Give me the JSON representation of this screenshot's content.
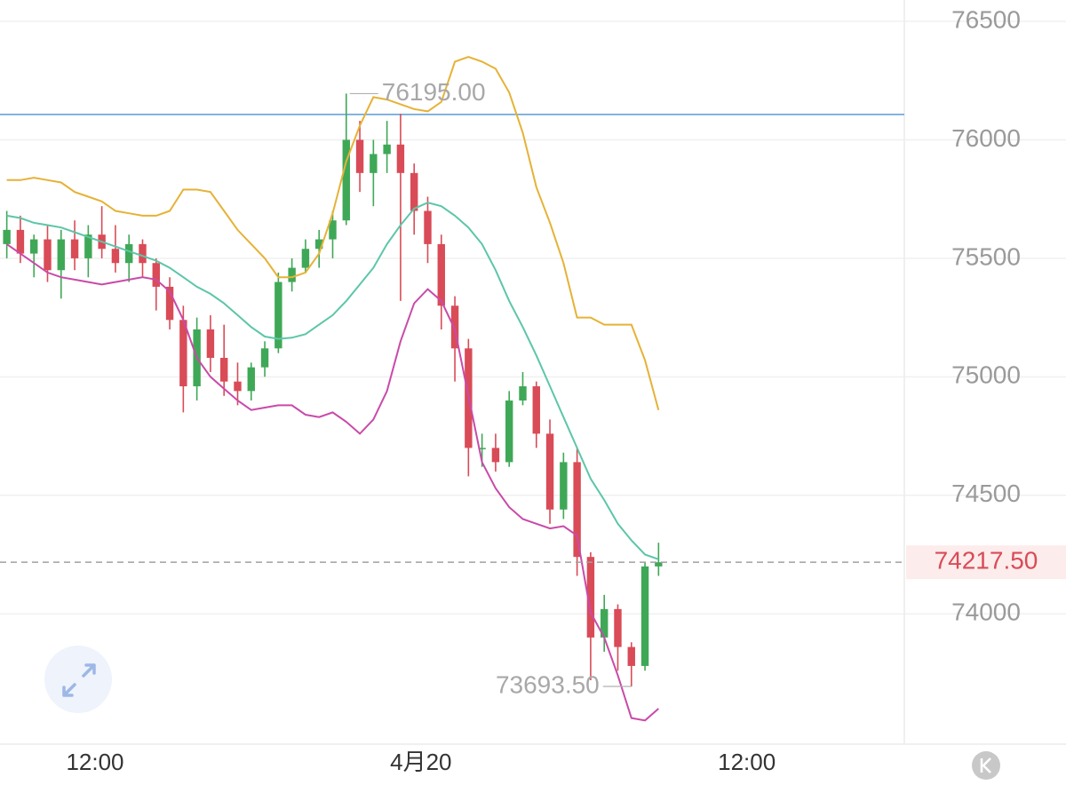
{
  "chart_data": {
    "type": "candlestick",
    "x": [
      -15.25,
      -14.75,
      -14.25,
      -13.75,
      -13.25,
      -12.75,
      -12.25,
      -11.75,
      -11.25,
      -10.75,
      -10.25,
      -9.75,
      -9.25,
      -8.75,
      -8.25,
      -7.75,
      -7.25,
      -6.75,
      -6.25,
      -5.75,
      -5.25,
      -4.75,
      -4.25,
      -3.75,
      -3.25,
      -2.75,
      -2.25,
      -1.75,
      -1.25,
      -0.75,
      -0.25,
      0.25,
      0.75,
      1.25,
      1.75,
      2.25,
      2.75,
      3.25,
      3.75,
      4.25,
      4.75,
      5.25,
      5.75,
      6.25,
      6.75,
      7.25,
      7.75,
      8.25,
      8.75
    ],
    "open": [
      75560,
      75620,
      75520,
      75580,
      75450,
      75580,
      75500,
      75600,
      75540,
      75480,
      75560,
      75480,
      75380,
      75240,
      74960,
      75200,
      75080,
      74980,
      74940,
      75040,
      75120,
      75400,
      75460,
      75540,
      75580,
      75660,
      76000,
      75860,
      75940,
      75980,
      75860,
      75700,
      75560,
      75300,
      75120,
      74700,
      74700,
      74640,
      74900,
      74960,
      74760,
      74440,
      74640,
      74240,
      73900,
      74020,
      73860,
      73780,
      74200
    ],
    "high": [
      75700,
      75680,
      75600,
      75640,
      75620,
      75660,
      75640,
      75720,
      75640,
      75600,
      75580,
      75500,
      75420,
      75300,
      75250,
      75260,
      75220,
      75060,
      75060,
      75150,
      75440,
      75500,
      75580,
      75620,
      75700,
      76195,
      76080,
      76000,
      76080,
      76110,
      75900,
      75760,
      75600,
      75340,
      75160,
      74760,
      74760,
      74940,
      75020,
      74980,
      74820,
      74680,
      74700,
      74260,
      74080,
      74040,
      73880,
      74220,
      74300
    ],
    "low": [
      75500,
      75480,
      75420,
      75400,
      75330,
      75450,
      75420,
      75500,
      75440,
      75400,
      75420,
      75280,
      75200,
      74850,
      74900,
      75020,
      74920,
      74880,
      74900,
      75000,
      75100,
      75360,
      75440,
      75460,
      75500,
      75640,
      75780,
      75720,
      75860,
      75320,
      75600,
      75480,
      75200,
      74980,
      74580,
      74620,
      74600,
      74620,
      74880,
      74700,
      74380,
      74400,
      74160,
      73720,
      73840,
      73760,
      73693.5,
      73760,
      74160
    ],
    "close": [
      75620,
      75520,
      75580,
      75450,
      75580,
      75500,
      75600,
      75540,
      75480,
      75560,
      75480,
      75380,
      75240,
      74960,
      75200,
      75080,
      74980,
      74940,
      75040,
      75120,
      75400,
      75460,
      75540,
      75580,
      75660,
      76000,
      75860,
      75940,
      75980,
      75860,
      75700,
      75560,
      75300,
      75120,
      74700,
      74700,
      74640,
      74900,
      74960,
      74760,
      74440,
      74640,
      74240,
      73900,
      74020,
      73860,
      73780,
      74200,
      74217.5
    ],
    "up_color": "#3fa857",
    "down_color": "#d94b57",
    "bands": [
      {
        "color": "#e6b236",
        "values": [
          75830,
          75830,
          75840,
          75830,
          75820,
          75780,
          75760,
          75740,
          75700,
          75690,
          75680,
          75680,
          75700,
          75790,
          75790,
          75780,
          75700,
          75620,
          75560,
          75500,
          75420,
          75420,
          75440,
          75520,
          75690,
          75910,
          76060,
          76180,
          76170,
          76150,
          76130,
          76120,
          76160,
          76330,
          76350,
          76330,
          76300,
          76200,
          76030,
          75800,
          75650,
          75480,
          75250,
          75250,
          75220,
          75220,
          75220,
          75070,
          74860
        ]
      },
      {
        "color": "#5cc6a8",
        "values": [
          75680,
          75670,
          75650,
          75640,
          75630,
          75610,
          75590,
          75570,
          75550,
          75530,
          75510,
          75490,
          75460,
          75420,
          75380,
          75350,
          75310,
          75260,
          75210,
          75170,
          75160,
          75165,
          75180,
          75220,
          75260,
          75320,
          75390,
          75460,
          75560,
          75640,
          75710,
          75735,
          75720,
          75680,
          75630,
          75560,
          75450,
          75320,
          75210,
          75090,
          74960,
          74830,
          74700,
          74570,
          74480,
          74380,
          74310,
          74250,
          74230
        ]
      },
      {
        "color": "#c94aa8",
        "values": [
          75560,
          75520,
          75480,
          75440,
          75420,
          75410,
          75400,
          75390,
          75400,
          75410,
          75420,
          75410,
          75360,
          75240,
          75080,
          75000,
          74950,
          74900,
          74860,
          74870,
          74880,
          74880,
          74840,
          74830,
          74850,
          74810,
          74760,
          74820,
          74940,
          75150,
          75310,
          75370,
          75320,
          75200,
          74920,
          74640,
          74530,
          74450,
          74400,
          74380,
          74360,
          74370,
          74330,
          74005,
          73900,
          73740,
          73560,
          73550,
          73600
        ]
      }
    ],
    "price_line": {
      "value": 76107,
      "color": "#5b9bd5"
    },
    "last_price": {
      "value": 74217.5,
      "label": "74217.50"
    },
    "high_label": {
      "value": 76195,
      "label": "76195.00"
    },
    "low_label": {
      "value": 73693.5,
      "label": "73693.50"
    },
    "xlim": [
      -15.5,
      17.8
    ],
    "xticks": [
      {
        "value": -12,
        "label": "12:00"
      },
      {
        "value": 0,
        "label": "4月20"
      },
      {
        "value": 12,
        "label": "12:00"
      }
    ],
    "ylim": [
      73450,
      76590
    ],
    "yticks": [
      74000,
      74500,
      75000,
      75500,
      76000,
      76500
    ],
    "grid": true
  }
}
